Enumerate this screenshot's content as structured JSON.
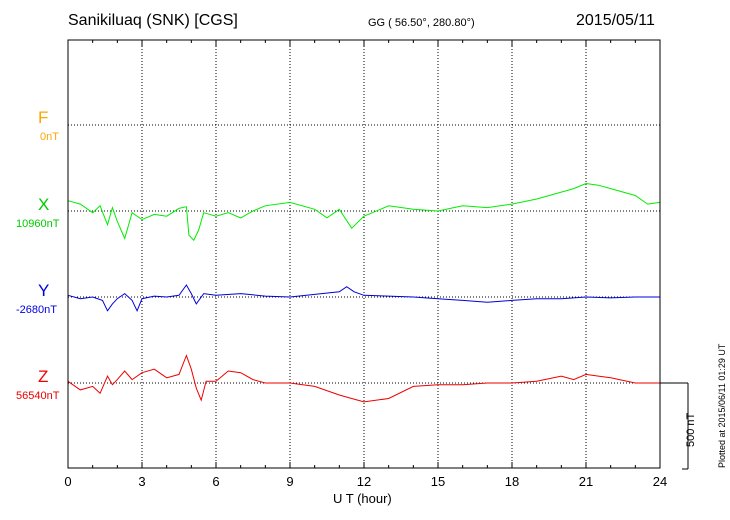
{
  "header": {
    "station": "Sanikiluaq (SNK)  [CGS]",
    "coords": "GG ( 56.50°, 280.80°)",
    "date": "2015/05/11"
  },
  "footer": {
    "plotted": "Plotted at 2015/06/11 01:29 UT",
    "scale_label": "500 nT"
  },
  "colors": {
    "F": "#ffa500",
    "X": "#00ee00",
    "Y": "#0000dd",
    "Z": "#ee0000"
  },
  "chart_data": {
    "type": "line",
    "xlabel": "U T (hour)",
    "x_ticks": [
      0,
      3,
      6,
      9,
      12,
      15,
      18,
      21,
      24
    ],
    "xlim": [
      0,
      24
    ],
    "scale_nT": 500,
    "series": [
      {
        "name": "F",
        "unit_label": "0nT",
        "baseline": 0,
        "points": []
      },
      {
        "name": "X",
        "unit_label": "10960nT",
        "baseline": 10960,
        "points": [
          [
            0,
            11020
          ],
          [
            0.5,
            11000
          ],
          [
            1,
            10950
          ],
          [
            1.3,
            10990
          ],
          [
            1.6,
            10880
          ],
          [
            1.8,
            10980
          ],
          [
            2,
            10900
          ],
          [
            2.3,
            10800
          ],
          [
            2.6,
            10950
          ],
          [
            3,
            10910
          ],
          [
            3.5,
            10940
          ],
          [
            4,
            10930
          ],
          [
            4.5,
            10975
          ],
          [
            4.8,
            10985
          ],
          [
            4.9,
            10820
          ],
          [
            5.1,
            10790
          ],
          [
            5.3,
            10850
          ],
          [
            5.5,
            10950
          ],
          [
            6,
            10930
          ],
          [
            6.5,
            10950
          ],
          [
            7,
            10920
          ],
          [
            7.5,
            10960
          ],
          [
            8,
            10990
          ],
          [
            9,
            11010
          ],
          [
            10,
            10970
          ],
          [
            10.5,
            10920
          ],
          [
            11,
            10970
          ],
          [
            11.5,
            10860
          ],
          [
            12,
            10930
          ],
          [
            13,
            10990
          ],
          [
            14,
            10970
          ],
          [
            15,
            10960
          ],
          [
            16,
            10990
          ],
          [
            17,
            10980
          ],
          [
            18,
            11000
          ],
          [
            19,
            11030
          ],
          [
            20,
            11070
          ],
          [
            20.5,
            11090
          ],
          [
            21,
            11120
          ],
          [
            21.5,
            11110
          ],
          [
            22,
            11090
          ],
          [
            23,
            11050
          ],
          [
            23.5,
            11000
          ],
          [
            24,
            11010
          ]
        ]
      },
      {
        "name": "Y",
        "unit_label": "-2680nT",
        "baseline": -2680,
        "points": [
          [
            0,
            -2670
          ],
          [
            0.5,
            -2690
          ],
          [
            1,
            -2680
          ],
          [
            1.4,
            -2700
          ],
          [
            1.6,
            -2760
          ],
          [
            1.8,
            -2720
          ],
          [
            2,
            -2690
          ],
          [
            2.3,
            -2660
          ],
          [
            2.6,
            -2700
          ],
          [
            2.8,
            -2760
          ],
          [
            3,
            -2690
          ],
          [
            3.5,
            -2675
          ],
          [
            4,
            -2680
          ],
          [
            4.5,
            -2670
          ],
          [
            4.8,
            -2610
          ],
          [
            5,
            -2660
          ],
          [
            5.2,
            -2720
          ],
          [
            5.5,
            -2660
          ],
          [
            6,
            -2670
          ],
          [
            7,
            -2660
          ],
          [
            8,
            -2675
          ],
          [
            9,
            -2680
          ],
          [
            10,
            -2665
          ],
          [
            11,
            -2650
          ],
          [
            11.3,
            -2620
          ],
          [
            11.6,
            -2650
          ],
          [
            12,
            -2670
          ],
          [
            13,
            -2675
          ],
          [
            14,
            -2680
          ],
          [
            15,
            -2690
          ],
          [
            16,
            -2700
          ],
          [
            17,
            -2710
          ],
          [
            18,
            -2700
          ],
          [
            19,
            -2690
          ],
          [
            20,
            -2690
          ],
          [
            21,
            -2680
          ],
          [
            22,
            -2685
          ],
          [
            23,
            -2680
          ],
          [
            24,
            -2680
          ]
        ]
      },
      {
        "name": "Z",
        "unit_label": "56540nT",
        "baseline": 56540,
        "points": [
          [
            0,
            56550
          ],
          [
            0.5,
            56500
          ],
          [
            1,
            56520
          ],
          [
            1.3,
            56480
          ],
          [
            1.6,
            56580
          ],
          [
            1.8,
            56530
          ],
          [
            2,
            56560
          ],
          [
            2.3,
            56610
          ],
          [
            2.6,
            56560
          ],
          [
            3,
            56600
          ],
          [
            3.5,
            56620
          ],
          [
            4,
            56570
          ],
          [
            4.5,
            56590
          ],
          [
            4.8,
            56700
          ],
          [
            5,
            56620
          ],
          [
            5.2,
            56510
          ],
          [
            5.4,
            56440
          ],
          [
            5.6,
            56550
          ],
          [
            6,
            56550
          ],
          [
            6.5,
            56610
          ],
          [
            7,
            56600
          ],
          [
            7.5,
            56560
          ],
          [
            8,
            56540
          ],
          [
            9,
            56540
          ],
          [
            10,
            56520
          ],
          [
            11,
            56470
          ],
          [
            11.5,
            56450
          ],
          [
            12,
            56430
          ],
          [
            13,
            56450
          ],
          [
            14,
            56520
          ],
          [
            15,
            56530
          ],
          [
            16,
            56530
          ],
          [
            17,
            56540
          ],
          [
            18,
            56540
          ],
          [
            19,
            56550
          ],
          [
            20,
            56580
          ],
          [
            20.5,
            56560
          ],
          [
            21,
            56590
          ],
          [
            21.5,
            56580
          ],
          [
            22,
            56570
          ],
          [
            23,
            56540
          ],
          [
            23.5,
            56540
          ],
          [
            24,
            56540
          ]
        ]
      }
    ]
  }
}
